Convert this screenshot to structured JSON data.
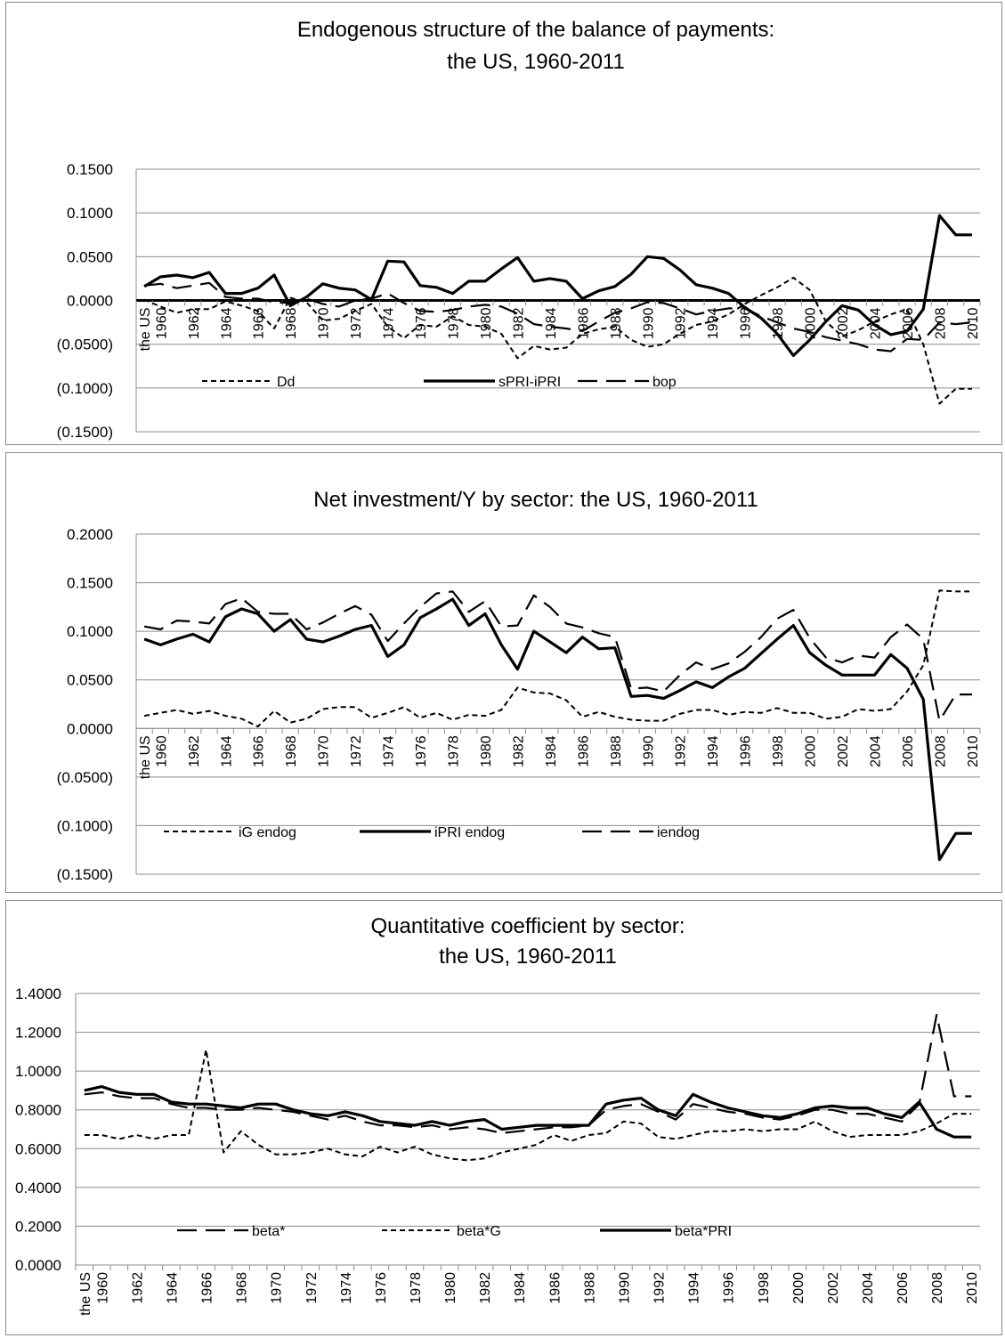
{
  "chart_data": [
    {
      "type": "line",
      "title": "Endogenous structure of the balance of payments:",
      "subtitle": "the US, 1960-2011",
      "x_start_label": "the US",
      "x": [
        "1959",
        "1960",
        "1961",
        "1962",
        "1963",
        "1964",
        "1965",
        "1966",
        "1967",
        "1968",
        "1969",
        "1970",
        "1971",
        "1972",
        "1973",
        "1974",
        "1975",
        "1976",
        "1977",
        "1978",
        "1979",
        "1980",
        "1981",
        "1982",
        "1983",
        "1984",
        "1985",
        "1986",
        "1987",
        "1988",
        "1989",
        "1990",
        "1991",
        "1992",
        "1993",
        "1994",
        "1995",
        "1996",
        "1997",
        "1998",
        "1999",
        "2000",
        "2001",
        "2002",
        "2003",
        "2004",
        "2005",
        "2006",
        "2007",
        "2008",
        "2009",
        "2010"
      ],
      "xticks": [
        "1960",
        "1962",
        "1964",
        "1966",
        "1968",
        "1970",
        "1972",
        "1974",
        "1976",
        "1978",
        "1980",
        "1982",
        "1984",
        "1986",
        "1988",
        "1990",
        "1992",
        "1994",
        "1996",
        "1998",
        "2000",
        "2002",
        "2004",
        "2006",
        "2008",
        "2010"
      ],
      "ylim": [
        -0.15,
        0.15
      ],
      "yticks": [
        0.15,
        0.1,
        0.05,
        0.0,
        -0.05,
        -0.1,
        -0.15
      ],
      "ytick_labels": [
        "0.1500",
        "0.1000",
        "0.0500",
        "0.0000",
        "(0.0500)",
        "(0.1000)",
        "(0.1500)"
      ],
      "zero_line": true,
      "xaxis_at_zero": true,
      "grid": true,
      "legend": "bottom",
      "series": [
        {
          "name": "Dd",
          "style": "dotted",
          "values": [
            0.001,
            -0.007,
            -0.014,
            -0.01,
            -0.01,
            -0.001,
            -0.006,
            -0.012,
            -0.032,
            0.003,
            -0.002,
            -0.023,
            -0.021,
            -0.012,
            -0.004,
            -0.03,
            -0.043,
            -0.028,
            -0.03,
            -0.018,
            -0.028,
            -0.03,
            -0.038,
            -0.066,
            -0.052,
            -0.056,
            -0.054,
            -0.038,
            -0.033,
            -0.03,
            -0.045,
            -0.053,
            -0.05,
            -0.038,
            -0.028,
            -0.024,
            -0.016,
            -0.004,
            0.006,
            0.015,
            0.026,
            0.012,
            -0.024,
            -0.041,
            -0.034,
            -0.024,
            -0.016,
            -0.01,
            -0.05,
            -0.118,
            -0.101,
            -0.101
          ]
        },
        {
          "name": "sPRI-iPRI",
          "style": "solid",
          "values": [
            0.016,
            0.027,
            0.029,
            0.026,
            0.032,
            0.008,
            0.008,
            0.014,
            0.029,
            -0.006,
            0.004,
            0.019,
            0.014,
            0.012,
            0.001,
            0.045,
            0.044,
            0.017,
            0.015,
            0.008,
            0.022,
            0.022,
            0.036,
            0.049,
            0.022,
            0.025,
            0.022,
            0.002,
            0.011,
            0.016,
            0.03,
            0.05,
            0.048,
            0.035,
            0.018,
            0.014,
            0.008,
            -0.008,
            -0.02,
            -0.038,
            -0.063,
            -0.045,
            -0.024,
            -0.006,
            -0.011,
            -0.028,
            -0.039,
            -0.035,
            -0.01,
            0.097,
            0.075,
            0.075
          ]
        },
        {
          "name": "bop",
          "style": "dashed",
          "values": [
            0.017,
            0.019,
            0.014,
            0.017,
            0.02,
            0.004,
            0.002,
            0.002,
            -0.002,
            -0.003,
            0.002,
            -0.004,
            -0.007,
            0.0,
            0.002,
            0.008,
            -0.003,
            -0.012,
            -0.013,
            -0.011,
            -0.007,
            -0.005,
            -0.007,
            -0.015,
            -0.027,
            -0.03,
            -0.032,
            -0.035,
            -0.024,
            -0.014,
            -0.009,
            -0.002,
            -0.003,
            -0.009,
            -0.016,
            -0.012,
            -0.009,
            -0.009,
            -0.018,
            -0.025,
            -0.032,
            -0.036,
            -0.042,
            -0.046,
            -0.05,
            -0.056,
            -0.058,
            -0.044,
            -0.045,
            -0.025,
            -0.027,
            -0.025
          ]
        }
      ]
    },
    {
      "type": "line",
      "title": "Net investment/Y by sector: the US, 1960-2011",
      "x_start_label": "the US",
      "x": [
        "1959",
        "1960",
        "1961",
        "1962",
        "1963",
        "1964",
        "1965",
        "1966",
        "1967",
        "1968",
        "1969",
        "1970",
        "1971",
        "1972",
        "1973",
        "1974",
        "1975",
        "1976",
        "1977",
        "1978",
        "1979",
        "1980",
        "1981",
        "1982",
        "1983",
        "1984",
        "1985",
        "1986",
        "1987",
        "1988",
        "1989",
        "1990",
        "1991",
        "1992",
        "1993",
        "1994",
        "1995",
        "1996",
        "1997",
        "1998",
        "1999",
        "2000",
        "2001",
        "2002",
        "2003",
        "2004",
        "2005",
        "2006",
        "2007",
        "2008",
        "2009",
        "2010"
      ],
      "xticks": [
        "1960",
        "1962",
        "1964",
        "1966",
        "1968",
        "1970",
        "1972",
        "1974",
        "1976",
        "1978",
        "1980",
        "1982",
        "1984",
        "1986",
        "1988",
        "1990",
        "1992",
        "1994",
        "1996",
        "1998",
        "2000",
        "2002",
        "2004",
        "2006",
        "2008",
        "2010"
      ],
      "ylim": [
        -0.15,
        0.2
      ],
      "yticks": [
        0.2,
        0.15,
        0.1,
        0.05,
        0.0,
        -0.05,
        -0.1,
        -0.15
      ],
      "ytick_labels": [
        "0.2000",
        "0.1500",
        "0.1000",
        "0.0500",
        "0.0000",
        "(0.0500)",
        "(0.1000)",
        "(0.1500)"
      ],
      "zero_line": false,
      "xaxis_at_zero": true,
      "grid": true,
      "legend": "bottom",
      "series": [
        {
          "name": "iG endog",
          "style": "dotted",
          "values": [
            0.013,
            0.016,
            0.019,
            0.015,
            0.018,
            0.013,
            0.01,
            0.002,
            0.018,
            0.006,
            0.01,
            0.02,
            0.022,
            0.022,
            0.011,
            0.016,
            0.022,
            0.011,
            0.016,
            0.009,
            0.014,
            0.013,
            0.019,
            0.042,
            0.037,
            0.036,
            0.029,
            0.012,
            0.017,
            0.012,
            0.009,
            0.008,
            0.008,
            0.015,
            0.019,
            0.019,
            0.014,
            0.017,
            0.016,
            0.021,
            0.016,
            0.016,
            0.01,
            0.012,
            0.02,
            0.018,
            0.02,
            0.038,
            0.065,
            0.142,
            0.141,
            0.141
          ]
        },
        {
          "name": "iPRI endog",
          "style": "solid",
          "values": [
            0.092,
            0.086,
            0.092,
            0.097,
            0.089,
            0.115,
            0.123,
            0.118,
            0.1,
            0.112,
            0.092,
            0.089,
            0.095,
            0.102,
            0.106,
            0.074,
            0.086,
            0.114,
            0.123,
            0.133,
            0.106,
            0.118,
            0.086,
            0.061,
            0.1,
            0.089,
            0.078,
            0.094,
            0.082,
            0.083,
            0.033,
            0.034,
            0.031,
            0.039,
            0.048,
            0.042,
            0.053,
            0.062,
            0.077,
            0.092,
            0.106,
            0.078,
            0.065,
            0.055,
            0.055,
            0.055,
            0.076,
            0.062,
            0.03,
            -0.135,
            -0.108,
            -0.108
          ]
        },
        {
          "name": "iendog",
          "style": "dashed",
          "values": [
            0.105,
            0.102,
            0.111,
            0.11,
            0.108,
            0.128,
            0.134,
            0.12,
            0.118,
            0.118,
            0.102,
            0.109,
            0.118,
            0.126,
            0.117,
            0.09,
            0.108,
            0.125,
            0.139,
            0.141,
            0.12,
            0.131,
            0.105,
            0.106,
            0.137,
            0.125,
            0.108,
            0.104,
            0.098,
            0.094,
            0.041,
            0.042,
            0.038,
            0.055,
            0.068,
            0.061,
            0.067,
            0.079,
            0.094,
            0.113,
            0.122,
            0.093,
            0.073,
            0.068,
            0.075,
            0.073,
            0.094,
            0.107,
            0.092,
            0.008,
            0.035,
            0.035
          ]
        }
      ]
    },
    {
      "type": "line",
      "title": "Quantitative coefficient by sector:",
      "subtitle": "the US, 1960-2011",
      "x_start_label": "the US",
      "x": [
        "1959",
        "1960",
        "1961",
        "1962",
        "1963",
        "1964",
        "1965",
        "1966",
        "1967",
        "1968",
        "1969",
        "1970",
        "1971",
        "1972",
        "1973",
        "1974",
        "1975",
        "1976",
        "1977",
        "1978",
        "1979",
        "1980",
        "1981",
        "1982",
        "1983",
        "1984",
        "1985",
        "1986",
        "1987",
        "1988",
        "1989",
        "1990",
        "1991",
        "1992",
        "1993",
        "1994",
        "1995",
        "1996",
        "1997",
        "1998",
        "1999",
        "2000",
        "2001",
        "2002",
        "2003",
        "2004",
        "2005",
        "2006",
        "2007",
        "2008",
        "2009",
        "2010"
      ],
      "xticks": [
        "1960",
        "1962",
        "1964",
        "1966",
        "1968",
        "1970",
        "1972",
        "1974",
        "1976",
        "1978",
        "1980",
        "1982",
        "1984",
        "1986",
        "1988",
        "1990",
        "1992",
        "1994",
        "1996",
        "1998",
        "2000",
        "2002",
        "2004",
        "2006",
        "2008",
        "2010"
      ],
      "ylim": [
        0.0,
        1.4
      ],
      "yticks": [
        1.4,
        1.2,
        1.0,
        0.8,
        0.6,
        0.4,
        0.2,
        0.0
      ],
      "ytick_labels": [
        "1.4000",
        "1.2000",
        "1.0000",
        "0.8000",
        "0.6000",
        "0.4000",
        "0.2000",
        "0.0000"
      ],
      "zero_line": false,
      "xaxis_at_zero": false,
      "grid": true,
      "legend": "bottom",
      "series": [
        {
          "name": "beta*",
          "style": "dashed",
          "values": [
            0.88,
            0.89,
            0.87,
            0.86,
            0.86,
            0.83,
            0.81,
            0.81,
            0.8,
            0.8,
            0.81,
            0.8,
            0.79,
            0.77,
            0.75,
            0.77,
            0.74,
            0.72,
            0.72,
            0.71,
            0.72,
            0.7,
            0.71,
            0.7,
            0.68,
            0.69,
            0.7,
            0.71,
            0.71,
            0.72,
            0.8,
            0.82,
            0.83,
            0.79,
            0.75,
            0.83,
            0.81,
            0.79,
            0.78,
            0.76,
            0.75,
            0.77,
            0.8,
            0.8,
            0.78,
            0.78,
            0.76,
            0.74,
            0.83,
            1.29,
            0.87,
            0.87
          ]
        },
        {
          "name": "beta*G",
          "style": "dotted",
          "values": [
            0.67,
            0.67,
            0.65,
            0.67,
            0.65,
            0.67,
            0.67,
            1.11,
            0.58,
            0.69,
            0.62,
            0.57,
            0.57,
            0.58,
            0.6,
            0.57,
            0.56,
            0.61,
            0.58,
            0.61,
            0.57,
            0.55,
            0.54,
            0.55,
            0.58,
            0.6,
            0.62,
            0.67,
            0.64,
            0.67,
            0.68,
            0.74,
            0.73,
            0.66,
            0.65,
            0.67,
            0.69,
            0.69,
            0.7,
            0.69,
            0.7,
            0.7,
            0.74,
            0.69,
            0.66,
            0.67,
            0.67,
            0.67,
            0.69,
            0.73,
            0.78,
            0.78
          ]
        },
        {
          "name": "beta*PRI",
          "style": "solid",
          "values": [
            0.9,
            0.92,
            0.89,
            0.88,
            0.88,
            0.84,
            0.83,
            0.83,
            0.82,
            0.81,
            0.83,
            0.83,
            0.8,
            0.78,
            0.77,
            0.79,
            0.77,
            0.74,
            0.73,
            0.72,
            0.74,
            0.72,
            0.74,
            0.75,
            0.7,
            0.71,
            0.72,
            0.72,
            0.72,
            0.72,
            0.83,
            0.85,
            0.86,
            0.8,
            0.77,
            0.88,
            0.84,
            0.81,
            0.79,
            0.77,
            0.76,
            0.78,
            0.81,
            0.82,
            0.81,
            0.81,
            0.78,
            0.76,
            0.84,
            0.7,
            0.66,
            0.66
          ]
        }
      ]
    }
  ]
}
